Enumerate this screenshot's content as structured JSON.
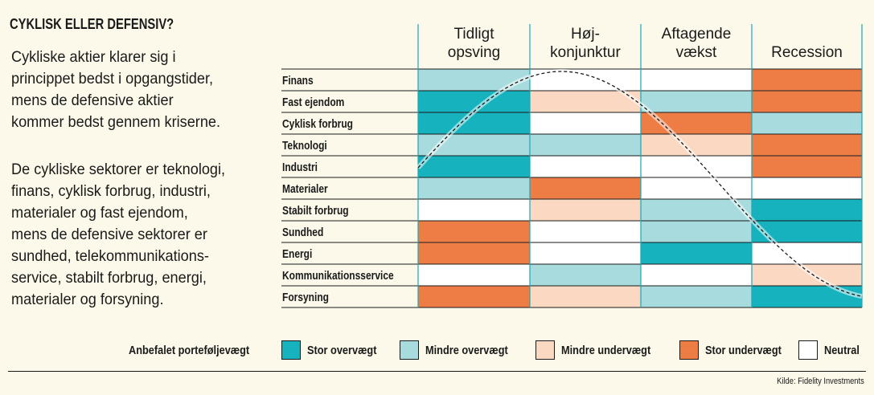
{
  "title": "CYKLISK ELLER DEFENSIV?",
  "paragraphs": [
    "Cykliske aktier klarer sig i\nprincippet bedst i opgangstider,\nmens de defensive aktier\nkommer bedst gennem kriserne.",
    "De cykliske sektorer er teknologi,\nfinans, cyklisk forbrug, industri,\nmaterialer og fast ejendom,\nmens de defensive sektorer er\nsundhed, telekommunikations-\nservice, stabilt forbrug, energi,\nmaterialer og forsyning."
  ],
  "colors": {
    "stor_overvaegt": "#16b3be",
    "mindre_overvaegt": "#a8dbde",
    "mindre_undervaegt": "#fad8c2",
    "stor_undervaegt": "#ee7d45",
    "neutral": "#ffffff"
  },
  "chart_data": {
    "type": "heatmap",
    "phases": [
      [
        "Tidligt",
        "opsving"
      ],
      [
        "Høj-",
        "konjunktur"
      ],
      [
        "Aftagende",
        "vækst"
      ],
      [
        "Recession"
      ]
    ],
    "sectors": [
      "Finans",
      "Fast ejendom",
      "Cyklisk forbrug",
      "Teknologi",
      "Industri",
      "Materialer",
      "Stabilt forbrug",
      "Sundhed",
      "Energi",
      "Kommunikationsservice",
      "Forsyning"
    ],
    "cells": [
      [
        "mindre_overvaegt",
        "neutral",
        "neutral",
        "stor_undervaegt"
      ],
      [
        "stor_overvaegt",
        "mindre_undervaegt",
        "mindre_overvaegt",
        "stor_undervaegt"
      ],
      [
        "stor_overvaegt",
        "neutral",
        "stor_undervaegt",
        "mindre_overvaegt"
      ],
      [
        "mindre_overvaegt",
        "mindre_overvaegt",
        "mindre_undervaegt",
        "stor_undervaegt"
      ],
      [
        "stor_overvaegt",
        "neutral",
        "neutral",
        "stor_undervaegt"
      ],
      [
        "mindre_overvaegt",
        "stor_undervaegt",
        "neutral",
        "neutral"
      ],
      [
        "neutral",
        "mindre_undervaegt",
        "mindre_overvaegt",
        "stor_overvaegt"
      ],
      [
        "stor_undervaegt",
        "neutral",
        "mindre_overvaegt",
        "stor_overvaegt"
      ],
      [
        "stor_undervaegt",
        "neutral",
        "stor_overvaegt",
        "neutral"
      ],
      [
        "neutral",
        "mindre_overvaegt",
        "neutral",
        "mindre_undervaegt"
      ],
      [
        "stor_undervaegt",
        "mindre_undervaegt",
        "mindre_overvaegt",
        "stor_overvaegt"
      ]
    ],
    "legend_title": "Anbefalet porteføljevægt",
    "legend": [
      {
        "key": "stor_overvaegt",
        "label": "Stor overvægt"
      },
      {
        "key": "mindre_overvaegt",
        "label": "Mindre overvægt"
      },
      {
        "key": "mindre_undervaegt",
        "label": "Mindre undervægt"
      },
      {
        "key": "stor_undervaegt",
        "label": "Stor undervægt"
      },
      {
        "key": "neutral",
        "label": "Neutral"
      }
    ],
    "curve": "dashed business-cycle sine wave"
  },
  "source": "Kilde: Fidelity Investments"
}
